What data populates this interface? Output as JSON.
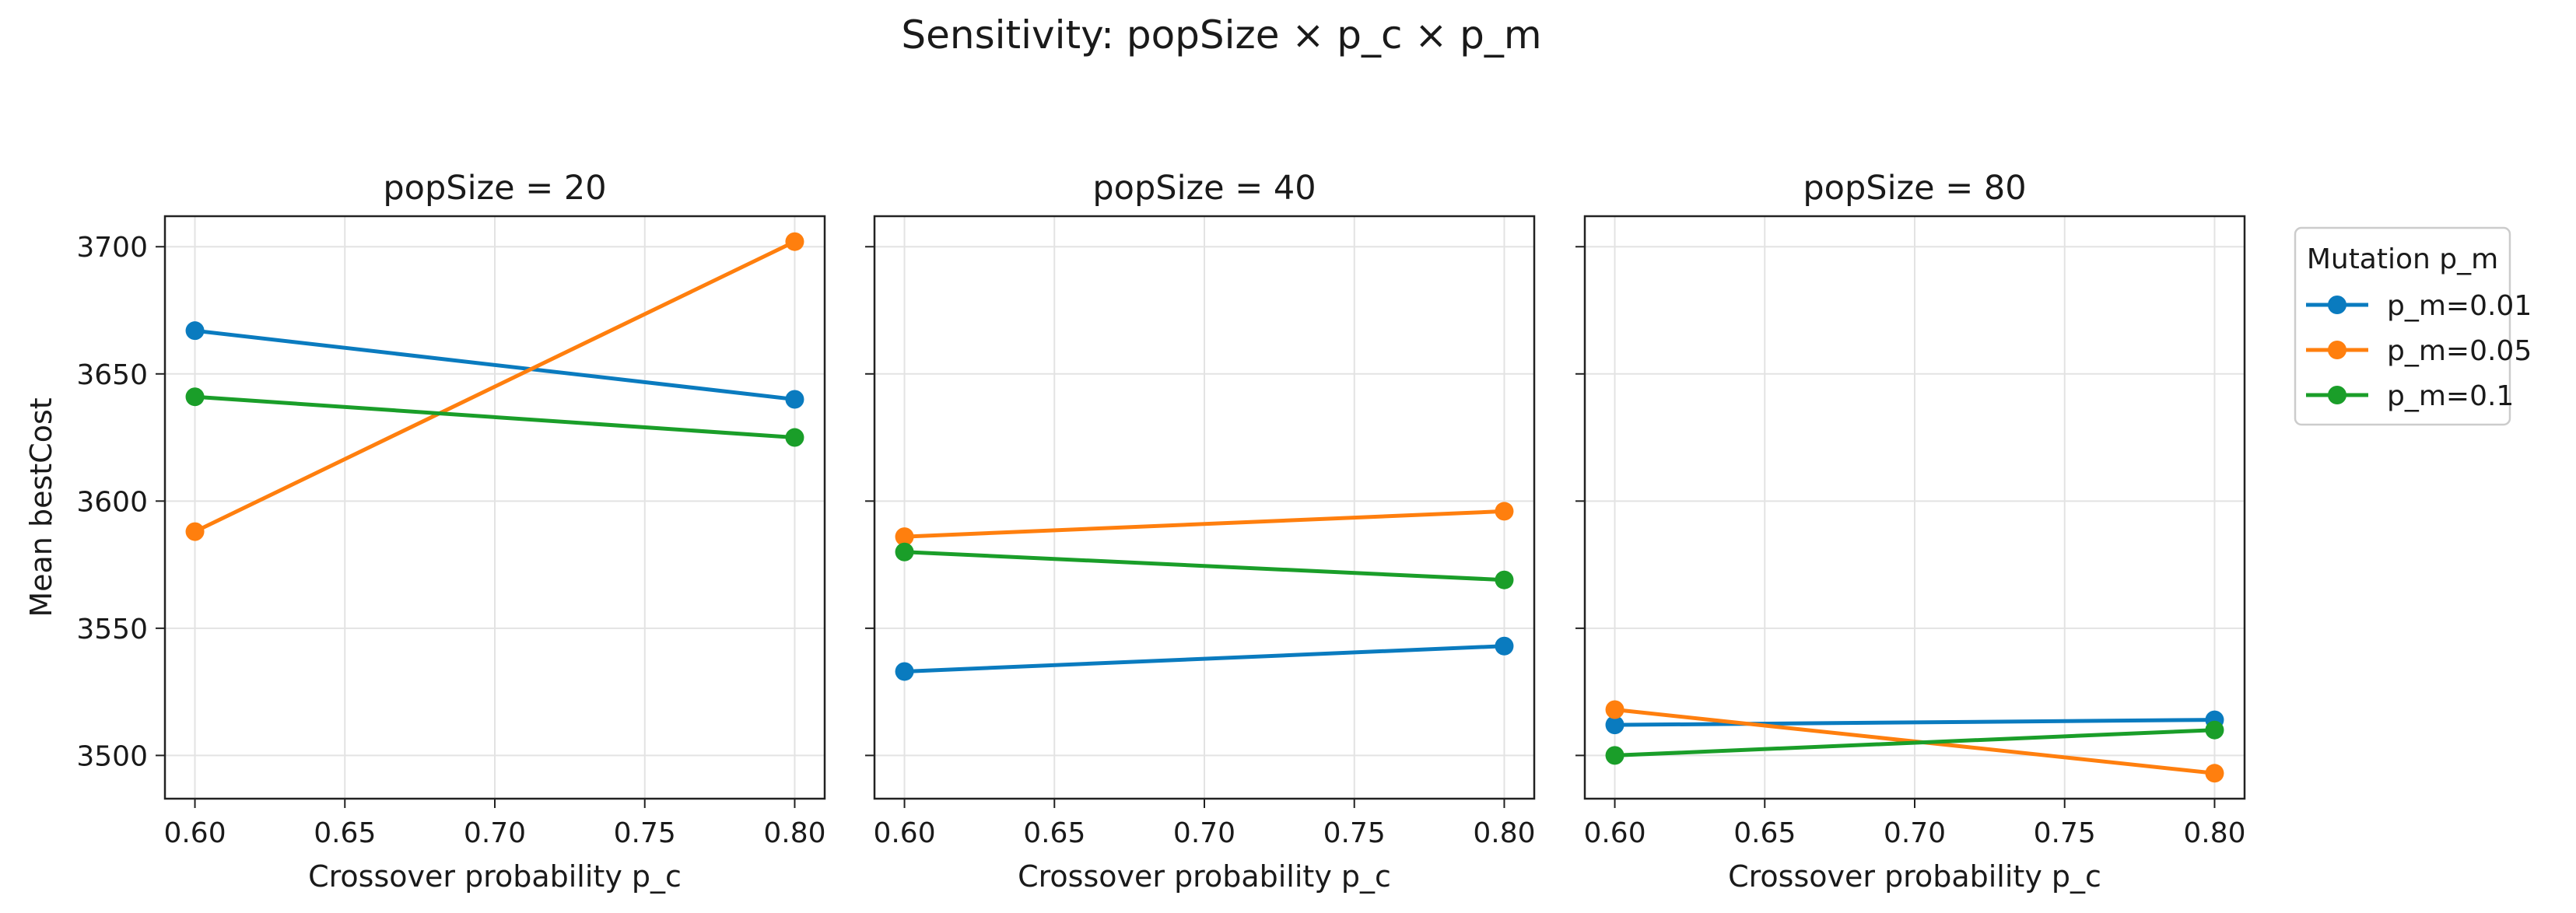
{
  "figure_title": "Sensitivity: popSize × p_c × p_m",
  "colors": {
    "p_m=0.01": "#0a7bbf",
    "p_m=0.05": "#ff7f0e",
    "p_m=0.1": "#1a9e29"
  },
  "legend": {
    "title": "Mutation p_m",
    "entries": [
      "p_m=0.01",
      "p_m=0.05",
      "p_m=0.1"
    ]
  },
  "chart_data": [
    {
      "type": "line",
      "title": "popSize = 20",
      "xlabel": "Crossover probability p_c",
      "ylabel": "Mean bestCost",
      "x": [
        0.6,
        0.8
      ],
      "xticks": [
        "0.60",
        "0.65",
        "0.70",
        "0.75",
        "0.80"
      ],
      "yticks": [
        "3500",
        "3550",
        "3600",
        "3650",
        "3700"
      ],
      "xlim": [
        0.59,
        0.81
      ],
      "ylim": [
        3483,
        3712
      ],
      "grid": true,
      "series": [
        {
          "name": "p_m=0.01",
          "values": [
            3667,
            3640
          ]
        },
        {
          "name": "p_m=0.05",
          "values": [
            3588,
            3702
          ]
        },
        {
          "name": "p_m=0.1",
          "values": [
            3641,
            3625
          ]
        }
      ]
    },
    {
      "type": "line",
      "title": "popSize = 40",
      "xlabel": "Crossover probability p_c",
      "ylabel": "",
      "x": [
        0.6,
        0.8
      ],
      "xticks": [
        "0.60",
        "0.65",
        "0.70",
        "0.75",
        "0.80"
      ],
      "yticks": [
        "",
        "",
        "",
        "",
        ""
      ],
      "xlim": [
        0.59,
        0.81
      ],
      "ylim": [
        3483,
        3712
      ],
      "grid": true,
      "series": [
        {
          "name": "p_m=0.01",
          "values": [
            3533,
            3543
          ]
        },
        {
          "name": "p_m=0.05",
          "values": [
            3586,
            3596
          ]
        },
        {
          "name": "p_m=0.1",
          "values": [
            3580,
            3569
          ]
        }
      ]
    },
    {
      "type": "line",
      "title": "popSize = 80",
      "xlabel": "Crossover probability p_c",
      "ylabel": "",
      "x": [
        0.6,
        0.8
      ],
      "xticks": [
        "0.60",
        "0.65",
        "0.70",
        "0.75",
        "0.80"
      ],
      "yticks": [
        "",
        "",
        "",
        "",
        ""
      ],
      "xlim": [
        0.59,
        0.81
      ],
      "ylim": [
        3483,
        3712
      ],
      "grid": true,
      "series": [
        {
          "name": "p_m=0.01",
          "values": [
            3512,
            3514
          ]
        },
        {
          "name": "p_m=0.05",
          "values": [
            3518,
            3493
          ]
        },
        {
          "name": "p_m=0.1",
          "values": [
            3500,
            3510
          ]
        }
      ]
    }
  ]
}
